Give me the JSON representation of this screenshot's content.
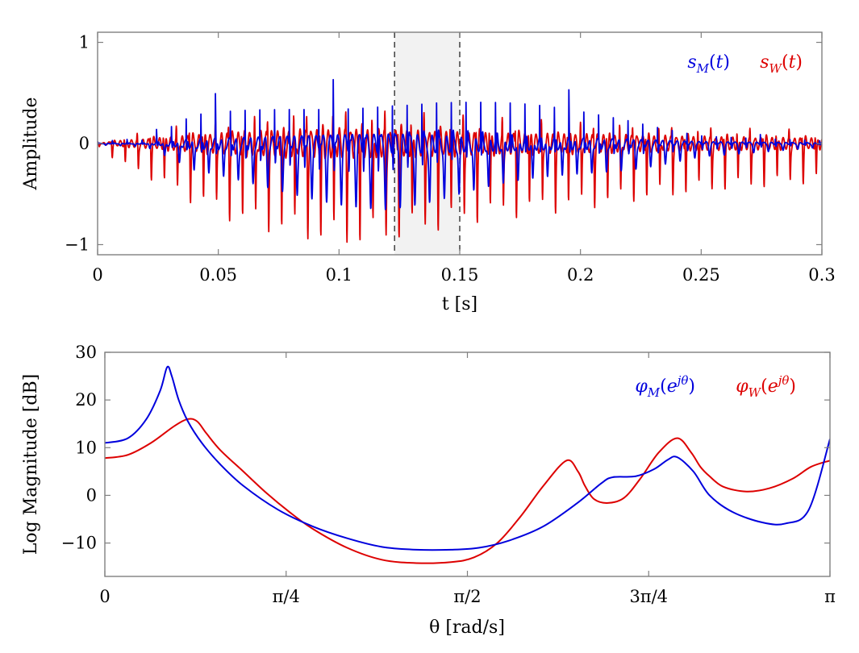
{
  "chart_data": [
    {
      "type": "line",
      "xlabel": "t [s]",
      "ylabel": "Amplitude",
      "xlim": [
        0,
        0.3
      ],
      "ylim": [
        -1.1,
        1.1
      ],
      "x_ticks": [
        0,
        0.05,
        0.1,
        0.15,
        0.2,
        0.25,
        0.3
      ],
      "x_tick_labels": [
        "0",
        "0.05",
        "0.1",
        "0.15",
        "0.2",
        "0.25",
        "0.3"
      ],
      "y_ticks": [
        -1,
        0,
        1
      ],
      "y_tick_labels": [
        "−1",
        "0",
        "1"
      ],
      "highlight_region": [
        0.123,
        0.15
      ],
      "legend_position": "top-right",
      "series": [
        {
          "name": "s_M(t)",
          "color": "#0000dd",
          "description_envelope": {
            "t": [
              0.0,
              0.02,
              0.04,
              0.06,
              0.08,
              0.1,
              0.12,
              0.14,
              0.16,
              0.18,
              0.2,
              0.22,
              0.25,
              0.3
            ],
            "amplitude": [
              0.02,
              0.05,
              0.4,
              0.5,
              0.6,
              0.7,
              0.78,
              0.75,
              0.65,
              0.55,
              0.45,
              0.35,
              0.15,
              0.05
            ]
          },
          "pulse_period": 0.0061
        },
        {
          "name": "s_W(t)",
          "color": "#dd0000",
          "description_envelope": {
            "t": [
              0.0,
              0.01,
              0.02,
              0.04,
              0.06,
              0.08,
              0.1,
              0.12,
              0.14,
              0.16,
              0.2,
              0.25,
              0.3
            ],
            "amplitude": [
              0.02,
              0.2,
              0.3,
              0.55,
              0.75,
              0.85,
              0.95,
              0.9,
              0.8,
              0.7,
              0.6,
              0.45,
              0.35
            ]
          },
          "pulse_period": 0.0054
        }
      ]
    },
    {
      "type": "line",
      "xlabel": "θ [rad/s]",
      "ylabel": "Log Magnitude [dB]",
      "xlim": [
        0,
        3.14159
      ],
      "ylim": [
        -17,
        30
      ],
      "x_ticks": [
        0,
        0.7854,
        1.5708,
        2.3562,
        3.14159
      ],
      "x_tick_labels": [
        "0",
        "π/4",
        "π/2",
        "3π/4",
        "π"
      ],
      "y_ticks": [
        -10,
        0,
        10,
        20,
        30
      ],
      "y_tick_labels": [
        "−10",
        "0",
        "10",
        "20",
        "30"
      ],
      "legend_position": "top-right",
      "series": [
        {
          "name": "φ_M(e^{jθ})",
          "color": "#0000dd",
          "x": [
            0,
            0.1,
            0.18,
            0.24,
            0.27,
            0.29,
            0.32,
            0.36,
            0.42,
            0.5,
            0.6,
            0.75,
            0.9,
            1.05,
            1.2,
            1.35,
            1.5,
            1.62,
            1.75,
            1.9,
            2.05,
            2.15,
            2.2,
            2.3,
            2.38,
            2.44,
            2.48,
            2.55,
            2.62,
            2.72,
            2.85,
            2.95,
            3.05,
            3.14159
          ],
          "y": [
            11,
            12,
            16,
            22,
            26.9,
            25,
            20,
            15.5,
            11,
            6.5,
            2,
            -3,
            -6.5,
            -9,
            -10.8,
            -11.4,
            -11.4,
            -11,
            -9.5,
            -6.5,
            -1.5,
            2.5,
            3.8,
            4,
            5.5,
            7.5,
            8,
            5,
            0,
            -3.5,
            -5.7,
            -5.9,
            -3,
            11.8
          ]
        },
        {
          "name": "φ_W(e^{jθ})",
          "color": "#dd0000",
          "x": [
            0,
            0.1,
            0.2,
            0.3,
            0.36,
            0.4,
            0.44,
            0.5,
            0.6,
            0.7,
            0.8,
            0.9,
            1.05,
            1.2,
            1.35,
            1.5,
            1.6,
            1.7,
            1.8,
            1.9,
            2.0,
            2.05,
            2.08,
            2.12,
            2.18,
            2.25,
            2.32,
            2.4,
            2.48,
            2.54,
            2.58,
            2.62,
            2.68,
            2.78,
            2.88,
            2.98,
            3.06,
            3.14159
          ],
          "y": [
            7.8,
            8.5,
            11,
            14.5,
            16,
            15.5,
            13,
            9.5,
            5,
            0.5,
            -3.5,
            -7,
            -11,
            -13.5,
            -14.2,
            -14,
            -13,
            -10,
            -4.5,
            2,
            7.3,
            5,
            2,
            -0.8,
            -1.6,
            -0.5,
            3.5,
            9,
            12,
            9,
            6,
            4,
            1.8,
            0.8,
            1.5,
            3.5,
            6,
            7.3
          ]
        }
      ]
    }
  ]
}
